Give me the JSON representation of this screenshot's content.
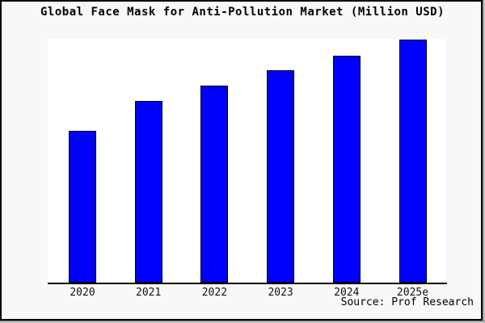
{
  "title": "Global Face Mask for Anti-Pollution Market (Million USD)",
  "source": "Source: Prof Research",
  "window": {
    "background": "#f8f8f8",
    "plot_background": "#ffffff",
    "border_color": "#000000",
    "shadow_color": "#7f7f7f"
  },
  "chart_data": {
    "type": "bar",
    "title": "Global Face Mask for Anti-Pollution Market (Million USD)",
    "categories": [
      "2020",
      "2021",
      "2022",
      "2023",
      "2024",
      "2025e"
    ],
    "values": [
      188,
      225,
      244,
      263,
      281,
      301
    ],
    "xlabel": "",
    "ylabel": "",
    "ylim": [
      0,
      302
    ],
    "y_axis_visible": false,
    "grid": false,
    "legend": false,
    "bar_color": "#0000ff",
    "bar_edge_color": "#000000",
    "annotation": "Source: Prof Research"
  }
}
